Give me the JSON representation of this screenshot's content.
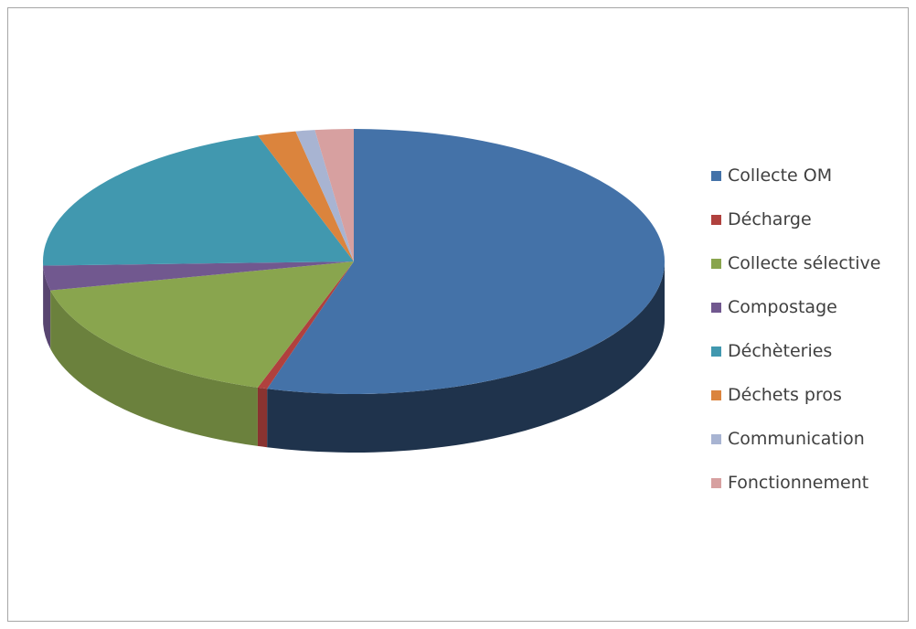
{
  "chart_data": {
    "type": "pie",
    "style": "3d",
    "title": "",
    "categories": [
      "Collecte OM",
      "Décharge",
      "Collecte sélective",
      "Compostage",
      "Déchèteries",
      "Déchets pros",
      "Communication",
      "Fonctionnement"
    ],
    "values": [
      54.5,
      0.5,
      16.5,
      3,
      20.5,
      2,
      1,
      2
    ],
    "colors": [
      "#4472a8",
      "#b0413e",
      "#89a54e",
      "#71588f",
      "#4198af",
      "#db843d",
      "#a8b4d2",
      "#d7a0a0"
    ],
    "legend_position": "right"
  }
}
